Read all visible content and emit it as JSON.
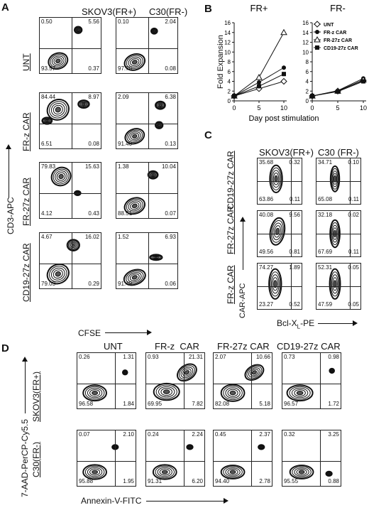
{
  "panels": {
    "A": {
      "letter": "A",
      "col_titles": [
        "SKOV3(FR+)",
        "C30(FR-)"
      ],
      "row_labels": [
        "UNT",
        "FR-z CAR",
        "FR-27z CAR",
        "CD19-27z CAR"
      ],
      "y_axis": "CD3-APC",
      "x_axis": "CFSE",
      "plots": [
        {
          "tl": "0.50",
          "tr": "5.56",
          "bl": "93.57",
          "br": "0.37"
        },
        {
          "tl": "0.10",
          "tr": "2.04",
          "bl": "97.78",
          "br": "0.08"
        },
        {
          "tl": "84.44",
          "tr": "8.97",
          "bl": "6.51",
          "br": "0.08"
        },
        {
          "tl": "2.09",
          "tr": "6.38",
          "bl": "91.40",
          "br": "0.13"
        },
        {
          "tl": "79.83",
          "tr": "15.63",
          "bl": "4.12",
          "br": "0.43"
        },
        {
          "tl": "1.38",
          "tr": "10.04",
          "bl": "88.51",
          "br": "0.07"
        },
        {
          "tl": "4.67",
          "tr": "16.02",
          "bl": "79.03",
          "br": "0.29"
        },
        {
          "tl": "1.52",
          "tr": "6.93",
          "bl": "91.49",
          "br": "0.06"
        }
      ]
    },
    "B": {
      "letter": "B",
      "y_axis": "Fold Expansion",
      "x_axis": "Day post stimulation",
      "legend": [
        "UNT",
        "FR-z CAR",
        "FR-27z CAR",
        "CD19-27z CAR"
      ]
    },
    "C": {
      "letter": "C",
      "col_titles": [
        "SKOV3(FR+)",
        "C30 (FR-)"
      ],
      "row_labels": [
        "CD19-27z CAR",
        "FR-27z CAR",
        "FR-z CAR"
      ],
      "y_axis": "CAR-APC",
      "x_axis_main": "Bcl-X",
      "x_axis_sub": "L",
      "x_axis_tail": "-PE",
      "plots": [
        {
          "tl": "35.68",
          "tr": "0.32",
          "bl": "63.86",
          "br": "0.11"
        },
        {
          "tl": "34.71",
          "tr": "0.10",
          "bl": "65.08",
          "br": "0.11"
        },
        {
          "tl": "40.08",
          "tr": "9.56",
          "bl": "49.56",
          "br": "0.81"
        },
        {
          "tl": "32.18",
          "tr": "0.02",
          "bl": "67.69",
          "br": "0.11"
        },
        {
          "tl": "74.27",
          "tr": "1.89",
          "bl": "23.27",
          "br": "0.52"
        },
        {
          "tl": "52.31",
          "tr": "0.05",
          "bl": "47.59",
          "br": "0.05"
        }
      ]
    },
    "D": {
      "letter": "D",
      "col_titles": [
        "UNT",
        "FR-z  CAR",
        "FR-27z CAR",
        "CD19-27z CAR"
      ],
      "row_labels": [
        "SKOV3(FR+)",
        "C30(FR-)"
      ],
      "y_axis": "7-AAD-PerCP-Cy5.5",
      "x_axis": "Annexin-V-FITC",
      "plots": [
        {
          "tl": "0.26",
          "tr": "1.31",
          "bl": "96.58",
          "br": "1.84"
        },
        {
          "tl": "0.93",
          "tr": "21.31",
          "bl": "69.95",
          "br": "7.82"
        },
        {
          "tl": "2.07",
          "tr": "10.66",
          "bl": "82.08",
          "br": "5.18"
        },
        {
          "tl": "0.73",
          "tr": "0.98",
          "bl": "96.57",
          "br": "1.72"
        },
        {
          "tl": "0.07",
          "tr": "2.10",
          "bl": "95.88",
          "br": "1.95"
        },
        {
          "tl": "0.24",
          "tr": "2.24",
          "bl": "91.31",
          "br": "6.20"
        },
        {
          "tl": "0.45",
          "tr": "2.37",
          "bl": "94.40",
          "br": "2.78"
        },
        {
          "tl": "0.32",
          "tr": "3.25",
          "bl": "95.55",
          "br": "0.88"
        }
      ]
    }
  },
  "chart_data": [
    {
      "type": "line",
      "title": "FR+",
      "xlabel": "Day post stimulation",
      "ylabel": "Fold Expansion",
      "x": [
        0,
        5,
        10
      ],
      "xticks": [
        "0",
        "5",
        "10"
      ],
      "yticks": [
        "0",
        "2",
        "4",
        "6",
        "8",
        "10",
        "12",
        "14",
        "16"
      ],
      "ylim": [
        0,
        16
      ],
      "series": [
        {
          "name": "UNT",
          "values": [
            1.0,
            2.5,
            4.0
          ],
          "marker": "open-diamond"
        },
        {
          "name": "FR-z CAR",
          "values": [
            1.0,
            3.8,
            6.8
          ],
          "marker": "filled-circle"
        },
        {
          "name": "FR-27z CAR",
          "values": [
            1.0,
            4.8,
            14.0
          ],
          "marker": "open-triangle"
        },
        {
          "name": "CD19-27z CAR",
          "values": [
            1.0,
            3.0,
            5.5
          ],
          "marker": "filled-square"
        }
      ]
    },
    {
      "type": "line",
      "title": "FR-",
      "xlabel": "",
      "ylabel": "",
      "x": [
        0,
        5,
        10
      ],
      "xticks": [
        "0",
        "5",
        "10"
      ],
      "yticks": [
        "0",
        "2",
        "4",
        "6",
        "8",
        "10",
        "12",
        "14",
        "16"
      ],
      "ylim": [
        0,
        16
      ],
      "legend_position": "top-right",
      "series": [
        {
          "name": "UNT",
          "values": [
            1.0,
            2.0,
            4.2
          ],
          "marker": "open-diamond"
        },
        {
          "name": "FR-z CAR",
          "values": [
            1.0,
            2.1,
            4.6
          ],
          "marker": "filled-circle"
        },
        {
          "name": "FR-27z CAR",
          "values": [
            1.0,
            2.0,
            4.3
          ],
          "marker": "open-triangle"
        },
        {
          "name": "CD19-27z CAR",
          "values": [
            1.0,
            1.9,
            4.0
          ],
          "marker": "filled-square"
        }
      ]
    }
  ]
}
